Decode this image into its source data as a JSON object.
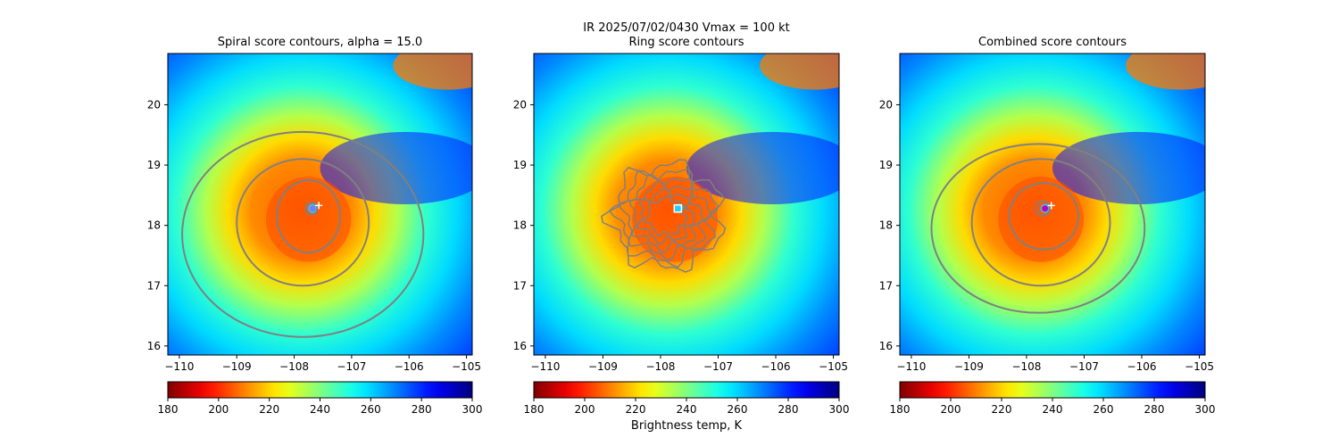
{
  "figure": {
    "suptitle_line1": "IR  2025/07/02/0430    Vmax = 100 kt"
  },
  "chart_data": [
    {
      "type": "heatmap",
      "title": "Spiral score contours, alpha = 15.0",
      "xlim": [
        -110.2,
        -104.9
      ],
      "ylim": [
        15.85,
        20.85
      ],
      "x_ticks": [
        -110,
        -109,
        -108,
        -107,
        -106,
        -105
      ],
      "y_ticks": [
        16,
        17,
        18,
        19,
        20
      ],
      "center_marker": {
        "symbol": "plus",
        "x": -107.57,
        "y": 18.33,
        "color": "#ffffff"
      },
      "best_point": {
        "x": -107.68,
        "y": 18.28,
        "color": "#7a7aff"
      },
      "contours": [
        {
          "level": 1,
          "center": [
            -107.7,
            18.28
          ],
          "rx": 0.1,
          "ry": 0.1
        },
        {
          "level": 2,
          "center": [
            -107.75,
            18.15
          ],
          "rx": 0.55,
          "ry": 0.6
        },
        {
          "level": 3,
          "center": [
            -107.85,
            18.05
          ],
          "rx": 1.15,
          "ry": 1.05
        },
        {
          "level": 4,
          "center": [
            -107.85,
            17.85
          ],
          "rx": 2.1,
          "ry": 1.7
        }
      ],
      "colorbar": {
        "ticks": [
          180,
          200,
          220,
          240,
          260,
          280,
          300
        ],
        "range": [
          180,
          300
        ],
        "label": "",
        "cmap": "jet_r"
      }
    },
    {
      "type": "heatmap",
      "title": "Ring score contours",
      "xlim": [
        -110.2,
        -104.9
      ],
      "ylim": [
        15.85,
        20.85
      ],
      "x_ticks": [
        -110,
        -109,
        -108,
        -107,
        -106,
        -105
      ],
      "y_ticks": [
        16,
        17,
        18,
        19,
        20
      ],
      "center_marker": {
        "symbol": "square",
        "x": -107.7,
        "y": 18.28,
        "color": "#ffffff"
      },
      "contours": [
        {
          "level": 1,
          "center": [
            -107.9,
            18.15
          ],
          "rx": 0.95,
          "ry": 0.85,
          "noisy": true
        }
      ],
      "colorbar": {
        "ticks": [
          180,
          200,
          220,
          240,
          260,
          280,
          300
        ],
        "range": [
          180,
          300
        ],
        "label": "Brightness temp, K",
        "cmap": "jet_r"
      }
    },
    {
      "type": "heatmap",
      "title": "Combined score contours",
      "xlim": [
        -110.2,
        -104.9
      ],
      "ylim": [
        15.85,
        20.85
      ],
      "x_ticks": [
        -110,
        -109,
        -108,
        -107,
        -106,
        -105
      ],
      "y_ticks": [
        16,
        17,
        18,
        19,
        20
      ],
      "center_marker": {
        "symbol": "plus",
        "x": -107.57,
        "y": 18.33,
        "color": "#ffffff"
      },
      "best_point": {
        "x": -107.68,
        "y": 18.28,
        "color": "#c000c0"
      },
      "contours": [
        {
          "level": 1,
          "center": [
            -107.72,
            18.28
          ],
          "rx": 0.12,
          "ry": 0.12
        },
        {
          "level": 2,
          "center": [
            -107.7,
            18.15
          ],
          "rx": 0.6,
          "ry": 0.55
        },
        {
          "level": 3,
          "center": [
            -107.75,
            18.05
          ],
          "rx": 1.2,
          "ry": 1.05
        },
        {
          "level": 4,
          "center": [
            -107.8,
            17.95
          ],
          "rx": 1.85,
          "ry": 1.4
        }
      ],
      "colorbar": {
        "ticks": [
          180,
          200,
          220,
          240,
          260,
          280,
          300
        ],
        "range": [
          180,
          300
        ],
        "label": "",
        "cmap": "jet_r"
      }
    }
  ]
}
